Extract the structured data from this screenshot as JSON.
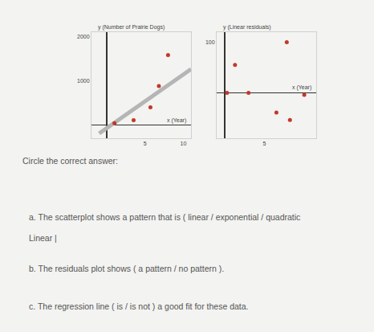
{
  "chart_data": [
    {
      "type": "scatter",
      "title": "y (Number of Prairie Dogs)",
      "x_label": "x (Year)",
      "grid": false,
      "xlim": [
        -2,
        11
      ],
      "xticks": [
        5,
        10
      ],
      "ylim": [
        -300,
        2100
      ],
      "yticks": [
        1000,
        2000
      ],
      "series": [
        {
          "type": "scatter",
          "color": "#c0392b",
          "x": [
            1,
            3.5,
            5.7,
            6.8,
            8
          ],
          "values": [
            40,
            110,
            400,
            880,
            1580
          ]
        },
        {
          "type": "line",
          "color": "#b5b5b5",
          "x": [
            -1,
            11
          ],
          "values": [
            -190,
            1265
          ]
        }
      ]
    },
    {
      "type": "scatter",
      "title": "y (Linear residuals)",
      "x_label": "x (Year)",
      "grid": false,
      "xlim": [
        -1,
        11.5
      ],
      "xticks": [
        5
      ],
      "ylim": [
        -90,
        120
      ],
      "yticks": [
        100
      ],
      "series": [
        {
          "type": "scatter",
          "color": "#c0392b",
          "x": [
            0.3,
            1.3,
            3,
            6.5,
            7.8,
            8.2,
            10
          ],
          "values": [
            0,
            55,
            0,
            -39,
            100,
            -54,
            -4
          ]
        }
      ]
    }
  ],
  "questions": {
    "instruction": "Circle the correct answer:",
    "items": [
      {
        "text": "a. The scatterplot shows a pattern that is ( linear / exponential / quadratic",
        "answer": "Linear |"
      },
      {
        "text": "b. The residuals plot shows ( a pattern / no pattern )."
      },
      {
        "text": "c. The regression line ( is / is not ) a good fit for these data."
      }
    ]
  }
}
